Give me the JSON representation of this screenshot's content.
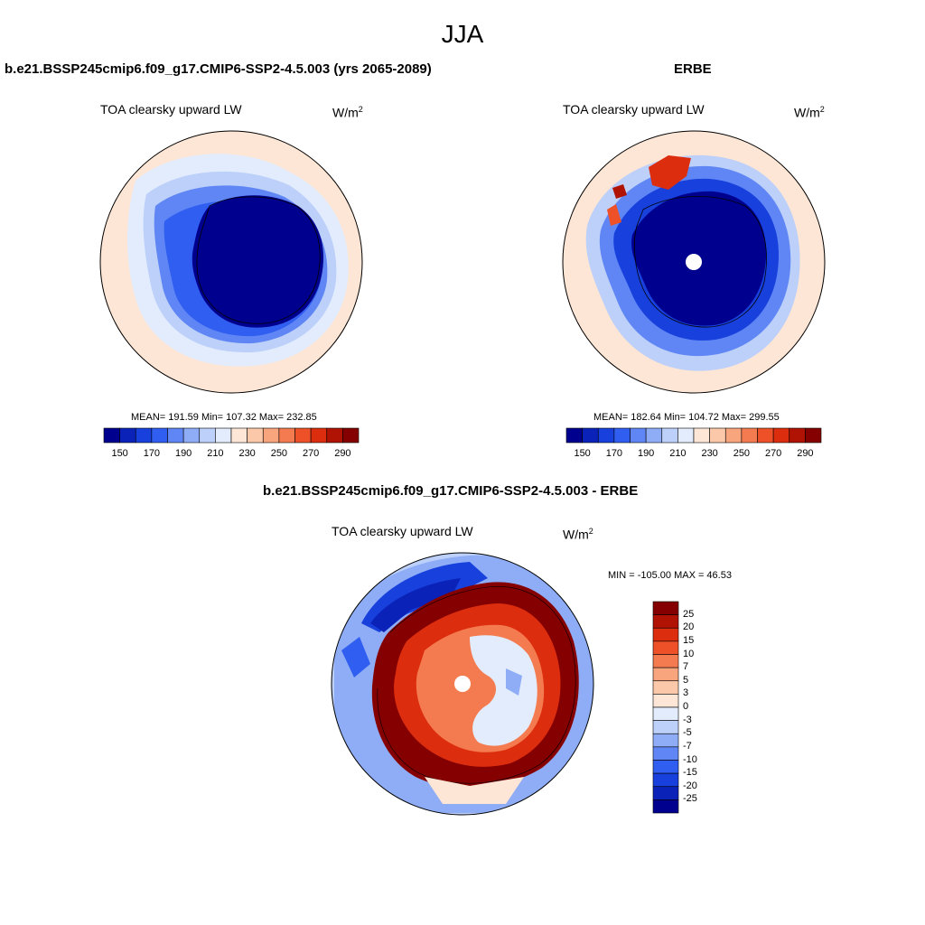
{
  "main_title": "JJA",
  "panels": {
    "model": {
      "title": "b.e21.BSSP245cmip6.f09_g17.CMIP6-SSP2-4.5.003 (yrs 2065-2089)",
      "variable": "TOA clearsky upward LW",
      "units_base": "W/m",
      "units_exp": "2",
      "stats": "MEAN= 191.59  Min= 107.32  Max= 232.85"
    },
    "obs": {
      "title": "ERBE",
      "variable": "TOA clearsky upward LW",
      "units_base": "W/m",
      "units_exp": "2",
      "stats": "MEAN= 182.64  Min= 104.72  Max= 299.55"
    },
    "diff": {
      "title": "b.e21.BSSP245cmip6.f09_g17.CMIP6-SSP2-4.5.003 - ERBE",
      "variable": "TOA clearsky upward LW",
      "units_base": "W/m",
      "units_exp": "2",
      "stats": "MIN = -105.00 MAX =  46.53"
    }
  },
  "colorbar_abs": {
    "colors": [
      "#00008e",
      "#0b22b8",
      "#1840dc",
      "#2f5ef0",
      "#5f86f4",
      "#8fadf7",
      "#bcd0fa",
      "#e2ecfd",
      "#fde6d6",
      "#fbc9aa",
      "#f8a47c",
      "#f47a4f",
      "#ee5128",
      "#dc2d0e",
      "#b01204",
      "#850000"
    ],
    "ticks": [
      "150",
      "170",
      "190",
      "210",
      "230",
      "250",
      "270",
      "290"
    ]
  },
  "colorbar_diff": {
    "colors": [
      "#850000",
      "#b01204",
      "#dc2d0e",
      "#ee5128",
      "#f47a4f",
      "#f8a47c",
      "#fbc9aa",
      "#fde6d6",
      "#e2ecfd",
      "#bcd0fa",
      "#8fadf7",
      "#5f86f4",
      "#2f5ef0",
      "#1840dc",
      "#0b22b8",
      "#00008e"
    ],
    "ticks": [
      "25",
      "20",
      "15",
      "10",
      "7",
      "5",
      "3",
      "0",
      "-3",
      "-5",
      "-7",
      "-10",
      "-15",
      "-20",
      "-25"
    ]
  }
}
